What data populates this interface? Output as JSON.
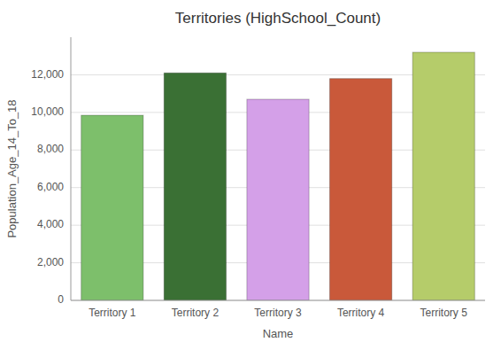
{
  "chart_data": {
    "type": "bar",
    "title": "Territories (HighSchool_Count)",
    "xlabel": "Name",
    "ylabel": "Population_Age_14_To_18",
    "categories": [
      "Territory 1",
      "Territory 2",
      "Territory 3",
      "Territory 4",
      "Territory 5"
    ],
    "values": [
      9850,
      12100,
      10700,
      11800,
      13200
    ],
    "colors": [
      "#7dbf6b",
      "#3a7034",
      "#d4a0e8",
      "#c9593a",
      "#b5cc6a"
    ],
    "ylim": [
      0,
      14000
    ],
    "yticks": [
      0,
      {
        "value": 2000,
        "label": "2,000"
      },
      {
        "value": 4000,
        "label": "4,000"
      },
      {
        "value": 6000,
        "label": "6,000"
      },
      {
        "value": 8000,
        "label": "8,000"
      },
      {
        "value": 10000,
        "label": "10,000"
      },
      {
        "value": 12000,
        "label": "12,000"
      }
    ],
    "grid": true
  }
}
